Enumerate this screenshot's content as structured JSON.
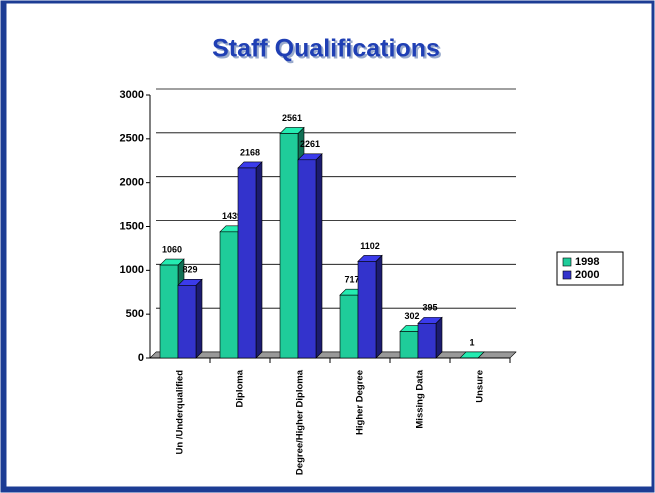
{
  "chart_data": {
    "type": "bar3d",
    "title": "Staff Qualifications",
    "categories": [
      "Un /Underqualified",
      "Diploma",
      "Degree/Higher Diploma",
      "Higher Degree",
      "Missing Data",
      "Unsure"
    ],
    "series": [
      {
        "name": "1998",
        "color": "#1fcc9a",
        "values": [
          1060,
          1439,
          2561,
          717,
          302,
          1
        ]
      },
      {
        "name": "2000",
        "color": "#3333cc",
        "values": [
          829,
          2168,
          2261,
          1102,
          395,
          null
        ]
      }
    ],
    "ylim": [
      0,
      3000
    ],
    "yticks": [
      0,
      500,
      1000,
      1500,
      2000,
      2500,
      3000
    ],
    "grid": true,
    "legend": "right"
  }
}
